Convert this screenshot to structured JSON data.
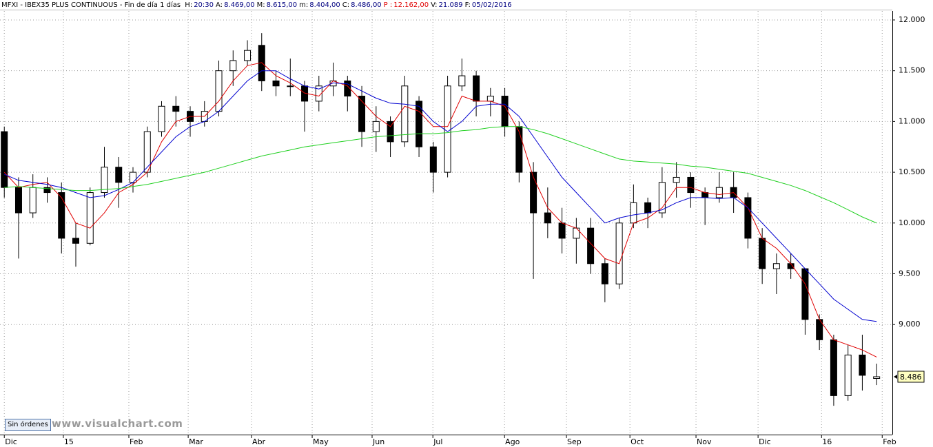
{
  "header": {
    "name": "MFXI - IBEX35 PLUS CONTINUOUS - Fin de día 1 días",
    "fields": [
      {
        "label": "H:",
        "value": "20:30",
        "color": "#000080"
      },
      {
        "label": "A:",
        "value": "8.469,00",
        "color": "#000080"
      },
      {
        "label": "M:",
        "value": "8.615,00",
        "color": "#000080"
      },
      {
        "label": "m:",
        "value": "8.404,00",
        "color": "#000080"
      },
      {
        "label": "C:",
        "value": "8.486,00",
        "color": "#000080"
      },
      {
        "label": "P :",
        "value": "12.162,00",
        "color": "#e00000",
        "label_color": "#e00000"
      },
      {
        "label": "V:",
        "value": "21.089",
        "color": "#000080"
      },
      {
        "label": "F:",
        "value": "05/02/2016",
        "color": "#000080"
      }
    ]
  },
  "button": "Sin órdenes",
  "watermark": "www.visualchart.com",
  "chart_data": {
    "type": "candlestick",
    "x": [
      0,
      1,
      2,
      3,
      4,
      5,
      6,
      7,
      8,
      9,
      10,
      11,
      12,
      13,
      14,
      15,
      16,
      17,
      18,
      19,
      20,
      21,
      22,
      23,
      24,
      25,
      26,
      27,
      28,
      29,
      30,
      31,
      32,
      33,
      34,
      35,
      36,
      37,
      38,
      39,
      40,
      41,
      42,
      43,
      44,
      45,
      46,
      47,
      48,
      49,
      50,
      51,
      52,
      53,
      54,
      55,
      56,
      57,
      58,
      59,
      60,
      61
    ],
    "open": [
      10900,
      10350,
      10100,
      10350,
      10300,
      9850,
      9800,
      10300,
      10550,
      10400,
      10500,
      10900,
      11150,
      11100,
      11000,
      11100,
      11500,
      11600,
      11750,
      11400,
      11350,
      11350,
      11200,
      11350,
      11400,
      11250,
      10900,
      11000,
      10800,
      11200,
      10750,
      10500,
      11350,
      11450,
      11200,
      11250,
      10950,
      10500,
      10100,
      10000,
      9850,
      9950,
      9600,
      9400,
      10000,
      10200,
      10100,
      10400,
      10450,
      10300,
      10250,
      10350,
      10250,
      9850,
      9550,
      9600,
      9550,
      9050,
      8850,
      8300,
      8700,
      8469
    ],
    "high": [
      10950,
      10450,
      10480,
      10450,
      10400,
      10000,
      10350,
      10750,
      10650,
      10550,
      10950,
      11200,
      11250,
      11150,
      11200,
      11600,
      11700,
      11800,
      11870,
      11500,
      11620,
      11400,
      11450,
      11580,
      11450,
      11350,
      11150,
      11050,
      11450,
      11250,
      10800,
      11450,
      11620,
      11500,
      11330,
      11330,
      11000,
      10600,
      10350,
      10150,
      10050,
      10050,
      9650,
      10050,
      10380,
      10250,
      10550,
      10600,
      10500,
      10350,
      10500,
      10500,
      10300,
      9950,
      9700,
      9700,
      9550,
      9100,
      8900,
      8800,
      8900,
      8615
    ],
    "low": [
      10250,
      9650,
      10050,
      10200,
      9700,
      9570,
      9780,
      10250,
      10150,
      10300,
      10450,
      10850,
      10950,
      10850,
      10950,
      11050,
      11350,
      11550,
      11300,
      11250,
      11250,
      10900,
      11100,
      11250,
      11100,
      10750,
      10700,
      10650,
      10750,
      10650,
      10300,
      10450,
      11300,
      11050,
      11050,
      10850,
      10400,
      9450,
      9850,
      9700,
      9600,
      9500,
      9220,
      9350,
      9950,
      9950,
      10050,
      10250,
      10150,
      9980,
      10200,
      10100,
      9750,
      9400,
      9300,
      9450,
      8900,
      8750,
      8200,
      8250,
      8350,
      8404
    ],
    "close": [
      10350,
      10100,
      10350,
      10300,
      9850,
      9800,
      10300,
      10550,
      10400,
      10500,
      10900,
      11150,
      11100,
      11000,
      11100,
      11500,
      11600,
      11700,
      11400,
      11350,
      11350,
      11200,
      11350,
      11400,
      11250,
      10900,
      11000,
      10800,
      11350,
      10750,
      10500,
      11350,
      11450,
      11200,
      11250,
      10950,
      10500,
      10100,
      10000,
      9850,
      9950,
      9600,
      9400,
      10000,
      10200,
      10100,
      10400,
      10450,
      10300,
      10250,
      10350,
      10250,
      9850,
      9550,
      9600,
      9550,
      9050,
      8850,
      8300,
      8700,
      8500,
      8486
    ],
    "series": [
      {
        "color": "#e00000",
        "values": [
          10500,
          10350,
          10380,
          10400,
          10250,
          10000,
          9950,
          10100,
          10300,
          10380,
          10500,
          10800,
          11000,
          11050,
          11050,
          11200,
          11400,
          11550,
          11580,
          11450,
          11380,
          11280,
          11250,
          11400,
          11350,
          11200,
          11050,
          10950,
          11150,
          11100,
          10950,
          10950,
          11250,
          11200,
          11200,
          11150,
          10900,
          10450,
          10150,
          10000,
          9950,
          9800,
          9650,
          9600,
          10000,
          10050,
          10150,
          10350,
          10350,
          10300,
          10280,
          10300,
          10150,
          9850,
          9750,
          9600,
          9400,
          9050,
          8850,
          8800,
          8750,
          8680
        ]
      },
      {
        "color": "#0000d0",
        "values": [
          10480,
          10420,
          10400,
          10380,
          10350,
          10300,
          10250,
          10270,
          10330,
          10400,
          10550,
          10700,
          10850,
          10950,
          11000,
          11100,
          11250,
          11400,
          11500,
          11500,
          11420,
          11350,
          11320,
          11380,
          11370,
          11300,
          11230,
          11180,
          11170,
          11150,
          11000,
          10900,
          11000,
          11150,
          11170,
          11170,
          11050,
          10850,
          10650,
          10450,
          10300,
          10150,
          10000,
          10050,
          10080,
          10100,
          10130,
          10200,
          10250,
          10250,
          10240,
          10250,
          10150,
          10000,
          9850,
          9700,
          9550,
          9400,
          9250,
          9150,
          9050,
          9030
        ]
      },
      {
        "color": "#20d020",
        "values": [
          10350,
          10360,
          10350,
          10340,
          10330,
          10320,
          10320,
          10330,
          10340,
          10360,
          10380,
          10410,
          10440,
          10470,
          10500,
          10540,
          10580,
          10620,
          10660,
          10690,
          10720,
          10750,
          10770,
          10790,
          10810,
          10830,
          10850,
          10860,
          10870,
          10880,
          10880,
          10890,
          10910,
          10920,
          10940,
          10950,
          10950,
          10920,
          10880,
          10830,
          10780,
          10730,
          10680,
          10630,
          10610,
          10600,
          10590,
          10580,
          10560,
          10550,
          10530,
          10510,
          10490,
          10450,
          10410,
          10370,
          10320,
          10260,
          10200,
          10130,
          10060,
          10000
        ]
      }
    ],
    "xlim": [
      -0.3,
      62.1
    ],
    "xticks": [
      {
        "value": 0,
        "label": "Dic"
      },
      {
        "value": 4.13,
        "label": "15"
      },
      {
        "value": 8.71,
        "label": "Feb"
      },
      {
        "value": 12.86,
        "label": "Mar"
      },
      {
        "value": 17.29,
        "label": "Abr"
      },
      {
        "value": 21.53,
        "label": "May"
      },
      {
        "value": 25.72,
        "label": "Jun"
      },
      {
        "value": 29.97,
        "label": "Jul"
      },
      {
        "value": 34.98,
        "label": "Ago"
      },
      {
        "value": 39.31,
        "label": "Sep"
      },
      {
        "value": 43.75,
        "label": "Oct"
      },
      {
        "value": 48.37,
        "label": "Nov"
      },
      {
        "value": 52.71,
        "label": "Dic"
      },
      {
        "value": 57.15,
        "label": "16"
      },
      {
        "value": 61.39,
        "label": "Feb"
      }
    ],
    "ylim": [
      7916,
      12088
    ],
    "yticks": [
      {
        "value": 9000,
        "label": "9.000"
      },
      {
        "value": 9500,
        "label": "9.500"
      },
      {
        "value": 10000,
        "label": "10.000"
      },
      {
        "value": 10500,
        "label": "10.500"
      },
      {
        "value": 11000,
        "label": "11.000"
      },
      {
        "value": 11500,
        "label": "11.500"
      },
      {
        "value": 12000,
        "label": "12.000"
      }
    ],
    "last_price": {
      "value": 8486,
      "label": "8.486"
    },
    "grid": true,
    "up_color": "#ffffff",
    "down_color": "#000000"
  }
}
